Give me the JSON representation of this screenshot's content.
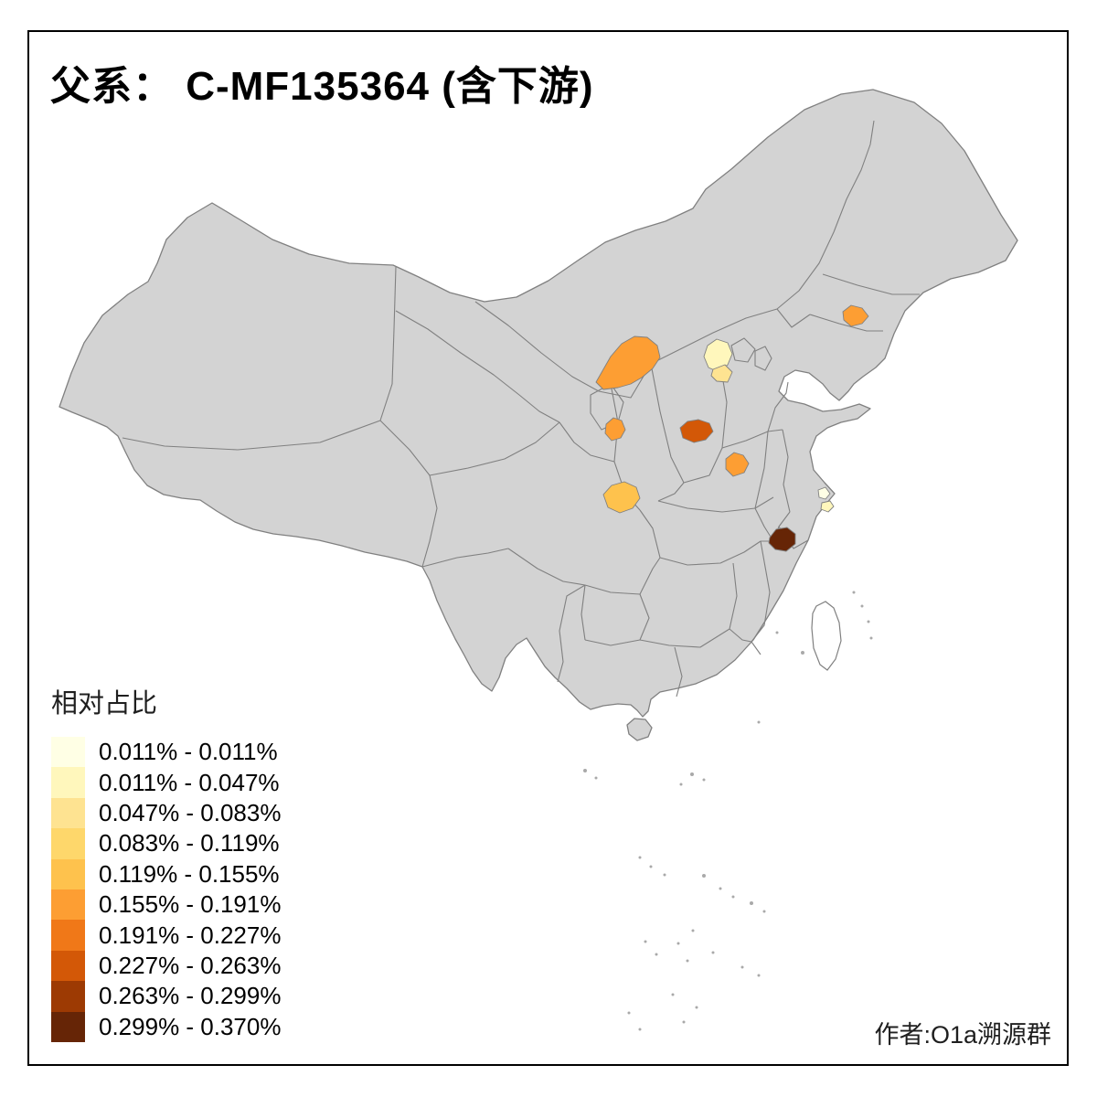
{
  "title": "父系： C-MF135364 (含下游)",
  "legend": {
    "title": "相对占比",
    "classes": [
      {
        "label": "0.011% - 0.011%",
        "color": "#FFFFE5"
      },
      {
        "label": "0.011% - 0.047%",
        "color": "#FFF7BC"
      },
      {
        "label": "0.047% - 0.083%",
        "color": "#FEE391"
      },
      {
        "label": "0.083% - 0.119%",
        "color": "#FED76B"
      },
      {
        "label": "0.119% - 0.155%",
        "color": "#FEC24D"
      },
      {
        "label": "0.155% - 0.191%",
        "color": "#FD9E33"
      },
      {
        "label": "0.191% - 0.227%",
        "color": "#F07818"
      },
      {
        "label": "0.227% - 0.263%",
        "color": "#D35807"
      },
      {
        "label": "0.263% - 0.299%",
        "color": "#9D3A03"
      },
      {
        "label": "0.299% - 0.370%",
        "color": "#662506"
      }
    ]
  },
  "author": "作者:O1a溯源群",
  "map": {
    "land_fill": "#D3D3D3",
    "border_color": "#808080",
    "background": "#FFFFFF",
    "regions": [
      {
        "id": "r1",
        "class_index": 6
      },
      {
        "id": "r2",
        "class_index": 2
      },
      {
        "id": "r3",
        "class_index": 3
      },
      {
        "id": "r4",
        "class_index": 6
      },
      {
        "id": "r5",
        "class_index": 6
      },
      {
        "id": "r6",
        "class_index": 8
      },
      {
        "id": "r7",
        "class_index": 6
      },
      {
        "id": "r8",
        "class_index": 5
      },
      {
        "id": "r9",
        "class_index": 1
      },
      {
        "id": "r10",
        "class_index": 2
      },
      {
        "id": "r11",
        "class_index": 10
      }
    ]
  }
}
